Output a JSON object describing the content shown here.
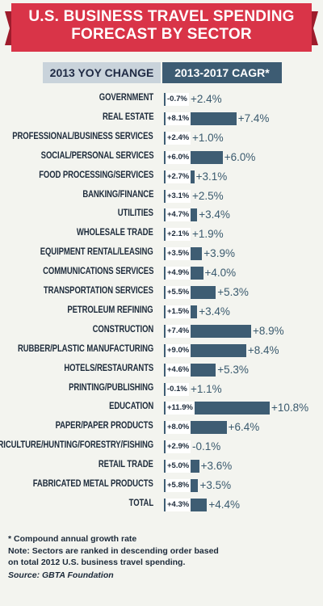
{
  "title_line1": "U.S. BUSINESS TRAVEL SPENDING",
  "title_line2": "FORECAST BY SECTOR",
  "header_left": "2013 YOY CHANGE",
  "header_right": "2013-2017 CAGR*",
  "colors": {
    "banner": "#d93448",
    "banner_dark": "#9e1c2c",
    "bar": "#3e5d73",
    "header_right": "#3d5c73",
    "header_left": "#c9d3db",
    "background": "#f3f4ef"
  },
  "chart_data": {
    "type": "bar",
    "orientation": "horizontal",
    "categories": [
      "GOVERNMENT",
      "REAL ESTATE",
      "PROFESSIONAL/BUSINESS SERVICES",
      "SOCIAL/PERSONAL SERVICES",
      "FOOD PROCESSING/SERVICES",
      "BANKING/FINANCE",
      "UTILITIES",
      "WHOLESALE TRADE",
      "EQUIPMENT RENTAL/LEASING",
      "COMMUNICATIONS SERVICES",
      "TRANSPORTATION SERVICES",
      "PETROLEUM REFINING",
      "CONSTRUCTION",
      "RUBBER/PLASTIC MANUFACTURING",
      "HOTELS/RESTAURANTS",
      "PRINTING/PUBLISHING",
      "EDUCATION",
      "PAPER/PAPER PRODUCTS",
      "AGRICULTURE/HUNTING/FORESTRY/FISHING",
      "RETAIL TRADE",
      "FABRICATED METAL PRODUCTS",
      "TOTAL"
    ],
    "series": [
      {
        "name": "2013 YOY CHANGE",
        "values": [
          -0.7,
          8.1,
          2.4,
          6.0,
          2.7,
          3.1,
          4.7,
          2.1,
          3.5,
          4.9,
          5.5,
          1.5,
          7.4,
          9.0,
          4.6,
          -0.1,
          11.9,
          8.0,
          2.9,
          5.0,
          5.8,
          4.3
        ],
        "labels": [
          "-0.7%",
          "+8.1%",
          "+2.4%",
          "+6.0%",
          "+2.7%",
          "+3.1%",
          "+4.7%",
          "+2.1%",
          "+3.5%",
          "+4.9%",
          "+5.5%",
          "+1.5%",
          "+7.4%",
          "+9.0%",
          "+4.6%",
          "-0.1%",
          "+11.9%",
          "+8.0%",
          "+2.9%",
          "+5.0%",
          "+5.8%",
          "+4.3%"
        ]
      },
      {
        "name": "2013-2017 CAGR*",
        "values": [
          2.4,
          7.4,
          1.0,
          6.0,
          3.1,
          2.5,
          3.4,
          1.9,
          3.9,
          4.0,
          5.3,
          3.4,
          8.9,
          8.4,
          5.3,
          1.1,
          10.8,
          6.4,
          -0.1,
          3.6,
          3.5,
          4.4
        ],
        "labels": [
          "+2.4%",
          "+7.4%",
          "+1.0%",
          "+6.0%",
          "+3.1%",
          "+2.5%",
          "+3.4%",
          "+1.9%",
          "+3.9%",
          "+4.0%",
          "+5.3%",
          "+3.4%",
          "+8.9%",
          "+8.4%",
          "+5.3%",
          "+1.1%",
          "+10.8%",
          "+6.4%",
          "-0.1%",
          "+3.6%",
          "+3.5%",
          "+4.4%"
        ]
      }
    ]
  },
  "footnote1": "* Compound annual growth rate",
  "footnote2": "Note: Sectors are ranked in descending order based",
  "footnote3": "on total 2012 U.S. business travel spending.",
  "source": "Source: GBTA Foundation"
}
